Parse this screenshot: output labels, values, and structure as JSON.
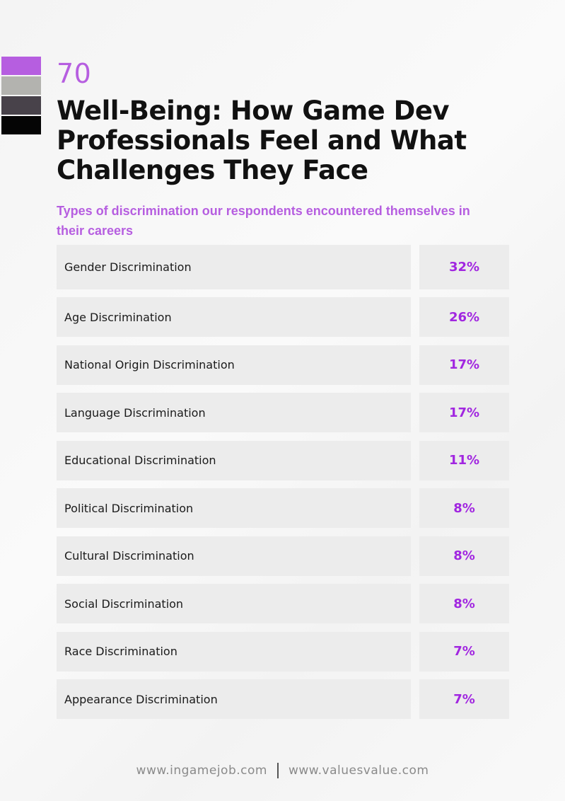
{
  "header": {
    "page_number": "70",
    "title": "Well-Being: How Game Dev Professionals Feel and What Challenges They Face",
    "swatch_colors": [
      "#b65ee0",
      "#b3b3af",
      "#48424a",
      "#050505"
    ]
  },
  "section": {
    "subtitle": "Types of discrimination our respondents encountered themselves in their careers"
  },
  "table": {
    "rows": [
      {
        "label": "Gender Discrimination",
        "value": "32%"
      },
      {
        "label": "Age Discrimination",
        "value": "26%"
      },
      {
        "label": "National Origin Discrimination",
        "value": "17%"
      },
      {
        "label": "Language Discrimination",
        "value": "17%"
      },
      {
        "label": "Educational Discrimination",
        "value": "11%"
      },
      {
        "label": "Political Discrimination",
        "value": "8%"
      },
      {
        "label": "Cultural Discrimination",
        "value": "8%"
      },
      {
        "label": "Social Discrimination",
        "value": "8%"
      },
      {
        "label": "Race Discrimination",
        "value": "7%"
      },
      {
        "label": "Appearance Discrimination",
        "value": "7%"
      }
    ]
  },
  "footer": {
    "link1": "www.ingamejob.com",
    "link2": "www.valuesvalue.com"
  }
}
